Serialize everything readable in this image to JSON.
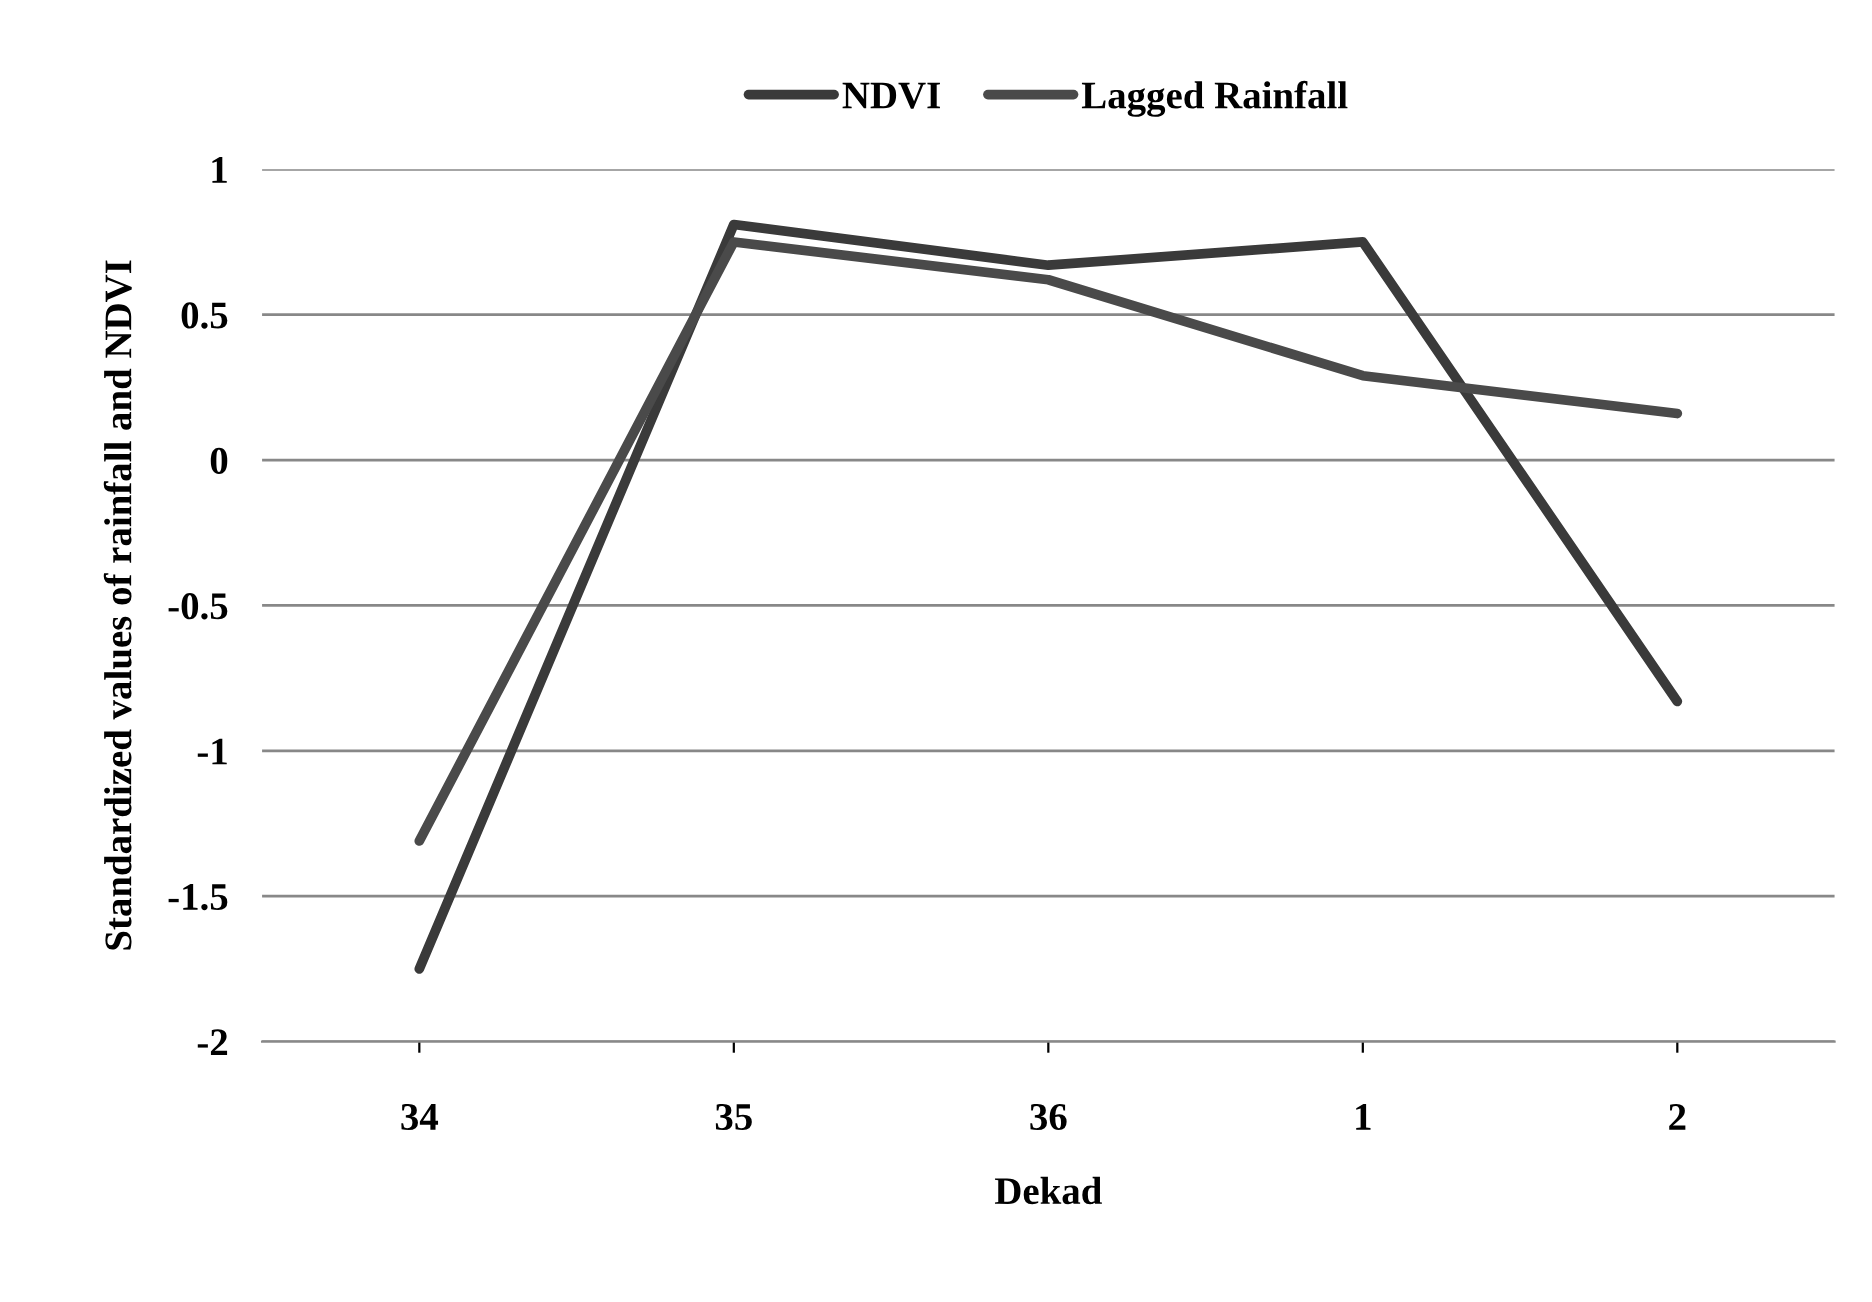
{
  "chart_data": {
    "type": "line",
    "xlabel": "Dekad",
    "ylabel": "Standardized values of rainfall and NDVI",
    "categories": [
      "34",
      "35",
      "36",
      "1",
      "2"
    ],
    "series": [
      {
        "name": "NDVI",
        "color": "#3a3a3a",
        "values": [
          -1.75,
          0.81,
          0.67,
          0.75,
          -0.83
        ]
      },
      {
        "name": "Lagged Rainfall",
        "color": "#4a4a4a",
        "values": [
          -1.31,
          0.75,
          0.62,
          0.29,
          0.16
        ]
      }
    ],
    "ylim": [
      -2,
      1
    ],
    "yticks": [
      -2,
      -1.5,
      -1,
      -0.5,
      0,
      0.5,
      1
    ],
    "grid": "y",
    "legend": "top",
    "marker": "none",
    "line_style": "solid"
  }
}
